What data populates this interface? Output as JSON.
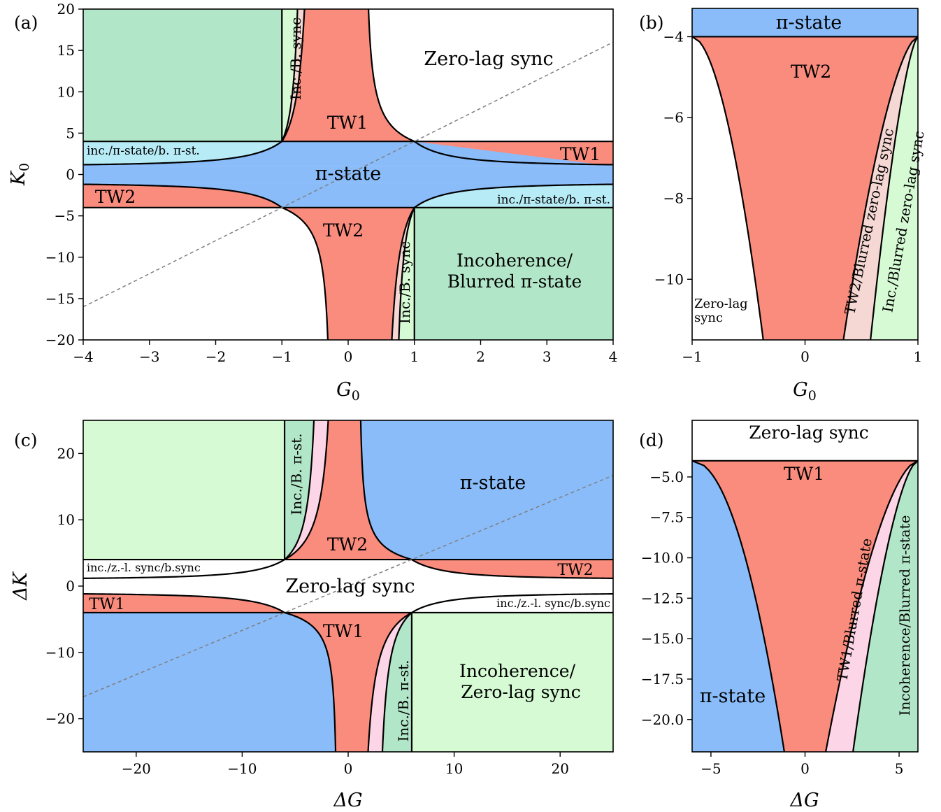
{
  "colors": {
    "red": "#fa8c7e",
    "blue": "#8abcfa",
    "teal": "#b2e6c8",
    "lightgreen": "#d6fbd4",
    "pink_a": "#f5d7d3",
    "pink_c": "#fcd6e6",
    "cyan": "#b7ecf7",
    "white": "#ffffff",
    "boundary": "#000000",
    "dashed": "#7f7f7f"
  },
  "chart_data": [
    {
      "type": "area",
      "panel_label": "(a)",
      "xlabel": "G",
      "xlabel_sub": "0",
      "ylabel": "K",
      "ylabel_sub": "0",
      "xlim": [
        -4,
        4
      ],
      "ylim": [
        -20,
        20
      ],
      "xticks": [
        -4,
        -3,
        -2,
        -1,
        0,
        1,
        2,
        3,
        4
      ],
      "xtick_labels": [
        "−4",
        "−3",
        "−2",
        "−1",
        "0",
        "1",
        "2",
        "3",
        "4"
      ],
      "yticks": [
        -20,
        -15,
        -10,
        -5,
        0,
        5,
        10,
        15,
        20
      ],
      "ytick_labels": [
        "−20",
        "−15",
        "−10",
        "−5",
        "0",
        "5",
        "10",
        "15",
        "20"
      ],
      "dashed_line": {
        "x": [
          -4,
          4
        ],
        "y": [
          -16,
          16
        ]
      },
      "regions": [
        {
          "label": "Zero-lag sync",
          "color": "white"
        },
        {
          "label": "TW1",
          "color": "red"
        },
        {
          "label": "TW1",
          "color": "red"
        },
        {
          "label": "π-state",
          "color": "blue"
        },
        {
          "label": "TW2",
          "color": "red"
        },
        {
          "label": "TW2",
          "color": "red"
        },
        {
          "label": "Inc./B. sync",
          "color": "lightgreen"
        },
        {
          "label": "Inc./B. sync",
          "color": "lightgreen"
        },
        {
          "label": "inc./π-state/b. π-st.",
          "color": "cyan"
        },
        {
          "label": "inc./π-state/b. π-st.",
          "color": "cyan"
        },
        {
          "label": "Incoherence/",
          "color": "teal"
        },
        {
          "label": "Blurred π-state",
          "color": "teal"
        }
      ]
    },
    {
      "type": "area",
      "panel_label": "(b)",
      "xlabel": "G",
      "xlabel_sub": "0",
      "xlim": [
        -1,
        1
      ],
      "ylim": [
        -11.5,
        -3.3
      ],
      "xticks": [
        -1,
        0,
        1
      ],
      "xtick_labels": [
        "−1",
        "0",
        "1"
      ],
      "yticks": [
        -10,
        -8,
        -6,
        -4
      ],
      "ytick_labels": [
        "−10",
        "−8",
        "−6",
        "−4"
      ],
      "regions": [
        {
          "label": "π-state",
          "color": "blue"
        },
        {
          "label": "TW2",
          "color": "red"
        },
        {
          "label": "TW2/Blurred zero-lag sync",
          "color": "pink_a"
        },
        {
          "label": "Inc./Blurred zero-lag sync",
          "color": "lightgreen"
        },
        {
          "label": "Zero-lag",
          "color": "white"
        },
        {
          "label": "sync",
          "color": "white"
        }
      ]
    },
    {
      "type": "area",
      "panel_label": "(c)",
      "xlabel": "ΔG",
      "ylabel": "ΔK",
      "xlim": [
        -25,
        25
      ],
      "ylim": [
        -25,
        25
      ],
      "xticks": [
        -20,
        -10,
        0,
        10,
        20
      ],
      "xtick_labels": [
        "−20",
        "−10",
        "0",
        "10",
        "20"
      ],
      "yticks": [
        -20,
        -10,
        0,
        10,
        20
      ],
      "ytick_labels": [
        "−20",
        "−10",
        "0",
        "10",
        "20"
      ],
      "dashed_line": {
        "x": [
          -25,
          25
        ],
        "y": [
          -16.7,
          16.7
        ]
      },
      "regions": [
        {
          "label": "π-state",
          "color": "blue"
        },
        {
          "label": "TW2",
          "color": "red"
        },
        {
          "label": "TW2",
          "color": "red"
        },
        {
          "label": "Zero-lag sync",
          "color": "white"
        },
        {
          "label": "TW1",
          "color": "red"
        },
        {
          "label": "TW1",
          "color": "red"
        },
        {
          "label": "Inc./B. π-st.",
          "color": "teal"
        },
        {
          "label": "Inc./B. π-st.",
          "color": "teal"
        },
        {
          "label": "inc./z.-l. sync/b.sync",
          "color": "white"
        },
        {
          "label": "inc./z.-l. sync/b.sync",
          "color": "white"
        },
        {
          "label": "Incoherence/",
          "color": "lightgreen"
        },
        {
          "label": "Zero-lag sync",
          "color": "lightgreen"
        }
      ]
    },
    {
      "type": "area",
      "panel_label": "(d)",
      "xlabel": "ΔG",
      "xlim": [
        -6,
        6
      ],
      "ylim": [
        -22,
        -1.5
      ],
      "xticks": [
        -5,
        0,
        5
      ],
      "xtick_labels": [
        "−5",
        "0",
        "5"
      ],
      "yticks": [
        -20,
        -17.5,
        -15,
        -12.5,
        -10,
        -7.5,
        -5
      ],
      "ytick_labels": [
        "−20.0",
        "−17.5",
        "−15.0",
        "−12.5",
        "−10.0",
        "−7.5",
        "−5.0"
      ],
      "regions": [
        {
          "label": "Zero-lag sync",
          "color": "white"
        },
        {
          "label": "TW1",
          "color": "red"
        },
        {
          "label": "TW1/Blurred π-state",
          "color": "pink_c"
        },
        {
          "label": "Incoherence/Blurred π-state",
          "color": "teal"
        },
        {
          "label": "π-state",
          "color": "blue"
        }
      ]
    }
  ]
}
